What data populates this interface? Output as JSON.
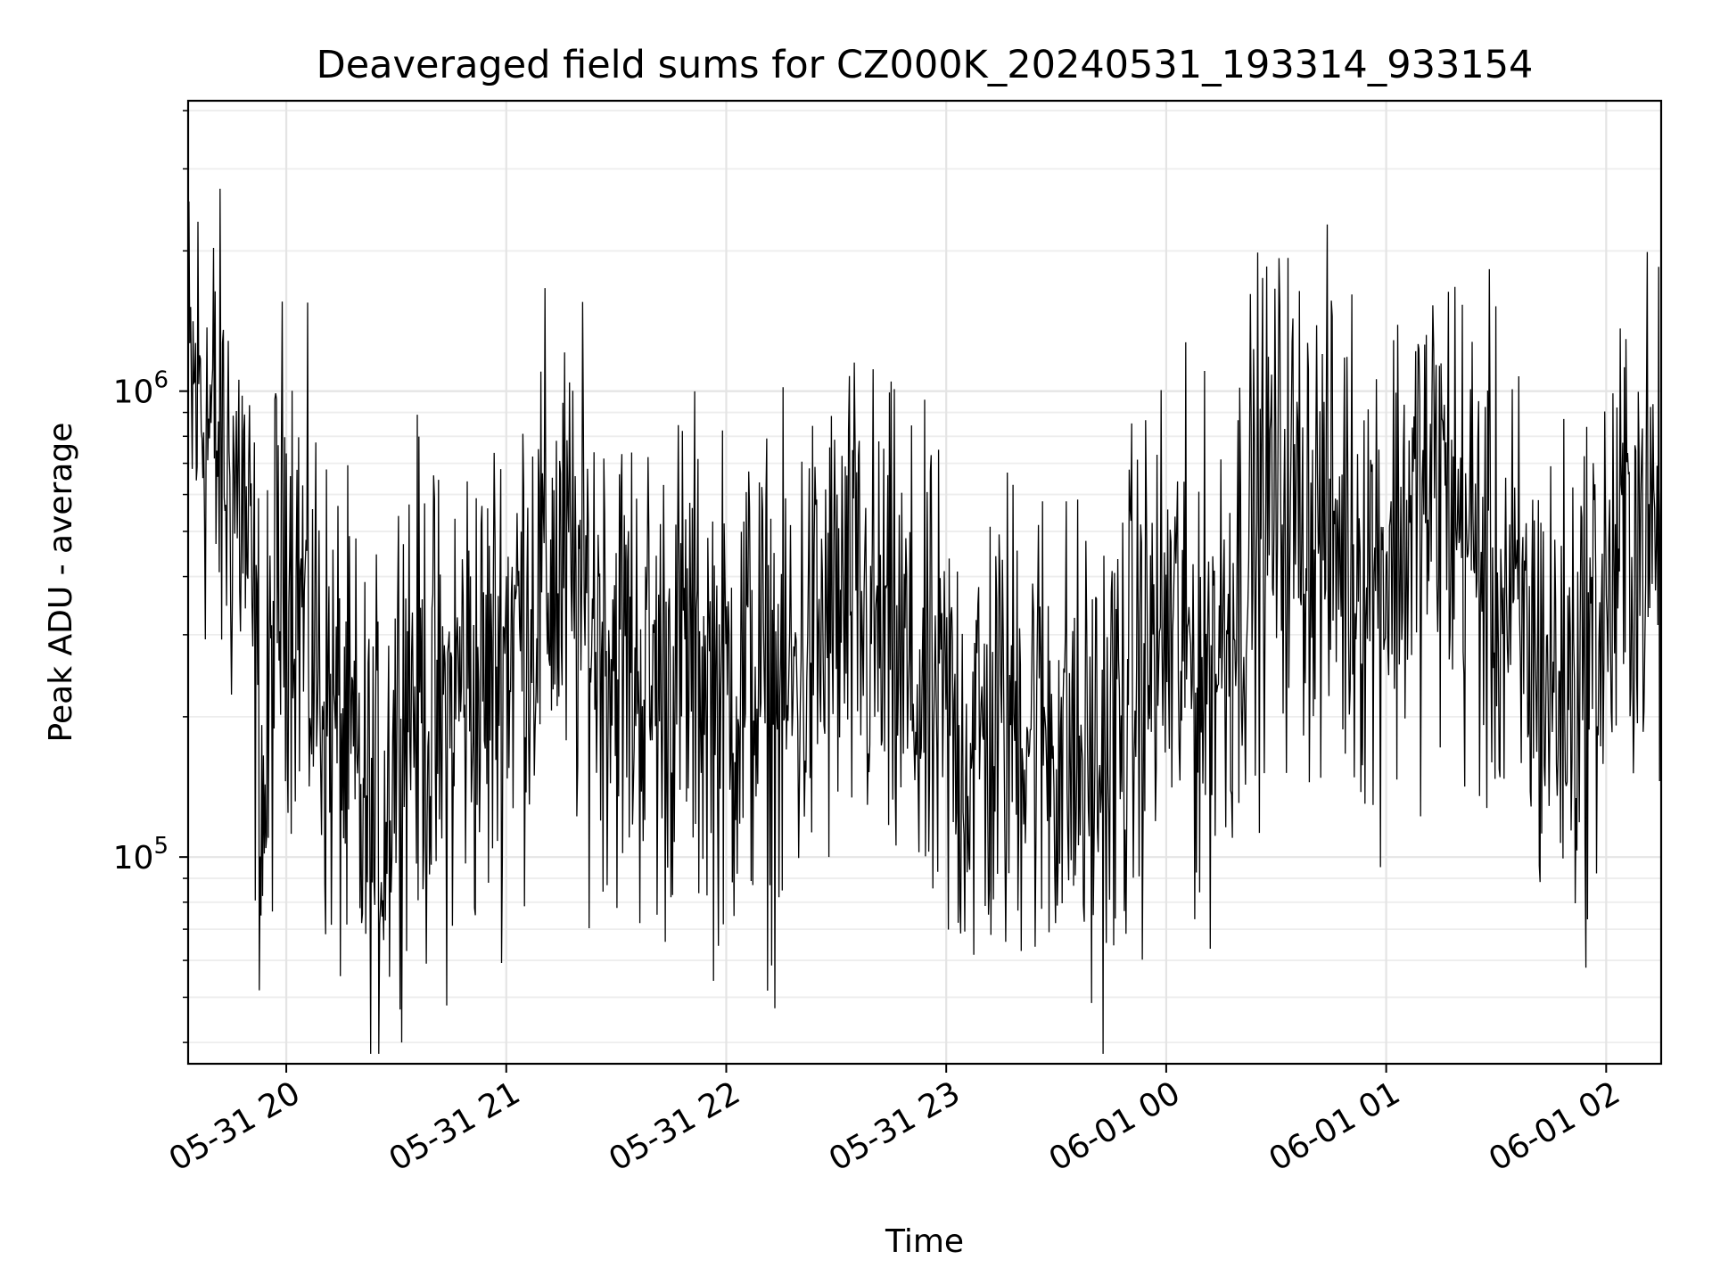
{
  "chart_data": {
    "type": "line",
    "title": "Deaveraged field sums for CZ000K_20240531_193314_933154",
    "xlabel": "Time",
    "ylabel": "Peak ADU - average",
    "yscale": "log",
    "ylim": [
      36000,
      4200000
    ],
    "xlim": [
      "2024-05-31 19:33:14",
      "2024-06-01 02:15:00"
    ],
    "grid": true,
    "x_ticks": [
      {
        "value": "2024-05-31 20:00",
        "label": "05-31 20"
      },
      {
        "value": "2024-05-31 21:00",
        "label": "05-31 21"
      },
      {
        "value": "2024-05-31 22:00",
        "label": "05-31 22"
      },
      {
        "value": "2024-05-31 23:00",
        "label": "05-31 23"
      },
      {
        "value": "2024-06-01 00:00",
        "label": "06-01 00"
      },
      {
        "value": "2024-06-01 01:00",
        "label": "06-01 01"
      },
      {
        "value": "2024-06-01 02:00",
        "label": "06-01 02"
      }
    ],
    "y_ticks": [
      {
        "value": 100000,
        "base": "10",
        "exp": "5"
      },
      {
        "value": 1000000,
        "base": "10",
        "exp": "6"
      }
    ],
    "series": [
      {
        "color": "#000000",
        "x": [
          "2024-05-31 19:33",
          "2024-05-31 19:36",
          "2024-05-31 19:39",
          "2024-05-31 19:42",
          "2024-05-31 19:45",
          "2024-05-31 19:48",
          "2024-05-31 19:51",
          "2024-05-31 19:54",
          "2024-05-31 19:57",
          "2024-05-31 20:00",
          "2024-05-31 20:03",
          "2024-05-31 20:06",
          "2024-05-31 20:09",
          "2024-05-31 20:12",
          "2024-05-31 20:15",
          "2024-05-31 20:18",
          "2024-05-31 20:21",
          "2024-05-31 20:24",
          "2024-05-31 20:27",
          "2024-05-31 20:30",
          "2024-05-31 20:33",
          "2024-05-31 20:36",
          "2024-05-31 20:39",
          "2024-05-31 20:42",
          "2024-05-31 20:45",
          "2024-05-31 20:48",
          "2024-05-31 20:51",
          "2024-05-31 20:54",
          "2024-05-31 20:57",
          "2024-05-31 21:00",
          "2024-05-31 21:03",
          "2024-05-31 21:06",
          "2024-05-31 21:09",
          "2024-05-31 21:12",
          "2024-05-31 21:15",
          "2024-05-31 21:18",
          "2024-05-31 21:21",
          "2024-05-31 21:24",
          "2024-05-31 21:27",
          "2024-05-31 21:30",
          "2024-05-31 21:33",
          "2024-05-31 21:36",
          "2024-05-31 21:39",
          "2024-05-31 21:42",
          "2024-05-31 21:45",
          "2024-05-31 21:48",
          "2024-05-31 21:51",
          "2024-05-31 21:54",
          "2024-05-31 21:57",
          "2024-05-31 22:00",
          "2024-05-31 22:03",
          "2024-05-31 22:06",
          "2024-05-31 22:09",
          "2024-05-31 22:12",
          "2024-05-31 22:15",
          "2024-05-31 22:18",
          "2024-05-31 22:21",
          "2024-05-31 22:24",
          "2024-05-31 22:27",
          "2024-05-31 22:30",
          "2024-05-31 22:33",
          "2024-05-31 22:36",
          "2024-05-31 22:39",
          "2024-05-31 22:42",
          "2024-05-31 22:45",
          "2024-05-31 22:48",
          "2024-05-31 22:51",
          "2024-05-31 22:54",
          "2024-05-31 22:57",
          "2024-05-31 23:00",
          "2024-05-31 23:03",
          "2024-05-31 23:06",
          "2024-05-31 23:09",
          "2024-05-31 23:12",
          "2024-05-31 23:15",
          "2024-05-31 23:18",
          "2024-05-31 23:21",
          "2024-05-31 23:24",
          "2024-05-31 23:27",
          "2024-05-31 23:30",
          "2024-05-31 23:33",
          "2024-05-31 23:36",
          "2024-05-31 23:39",
          "2024-05-31 23:42",
          "2024-05-31 23:45",
          "2024-05-31 23:48",
          "2024-05-31 23:51",
          "2024-05-31 23:54",
          "2024-05-31 23:57",
          "2024-06-01 00:00",
          "2024-06-01 00:03",
          "2024-06-01 00:06",
          "2024-06-01 00:09",
          "2024-06-01 00:12",
          "2024-06-01 00:15",
          "2024-06-01 00:18",
          "2024-06-01 00:21",
          "2024-06-01 00:24",
          "2024-06-01 00:27",
          "2024-06-01 00:30",
          "2024-06-01 00:33",
          "2024-06-01 00:36",
          "2024-06-01 00:39",
          "2024-06-01 00:42",
          "2024-06-01 00:45",
          "2024-06-01 00:48",
          "2024-06-01 00:51",
          "2024-06-01 00:54",
          "2024-06-01 00:57",
          "2024-06-01 01:00",
          "2024-06-01 01:03",
          "2024-06-01 01:06",
          "2024-06-01 01:09",
          "2024-06-01 01:12",
          "2024-06-01 01:15",
          "2024-06-01 01:18",
          "2024-06-01 01:21",
          "2024-06-01 01:24",
          "2024-06-01 01:27",
          "2024-06-01 01:30",
          "2024-06-01 01:33",
          "2024-06-01 01:36",
          "2024-06-01 01:39",
          "2024-06-01 01:42",
          "2024-06-01 01:45",
          "2024-06-01 01:48",
          "2024-06-01 01:51",
          "2024-06-01 01:54",
          "2024-06-01 01:57",
          "2024-06-01 02:00",
          "2024-06-01 02:03",
          "2024-06-01 02:06",
          "2024-06-01 02:09",
          "2024-06-01 02:12",
          "2024-06-01 02:15"
        ],
        "values": [
          900000,
          1000000,
          850000,
          700000,
          650000,
          600000,
          300000,
          120000,
          350000,
          500000,
          400000,
          300000,
          250000,
          200000,
          180000,
          150000,
          120000,
          110000,
          130000,
          200000,
          250000,
          220000,
          200000,
          180000,
          200000,
          250000,
          230000,
          220000,
          260000,
          300000,
          320000,
          350000,
          380000,
          420000,
          400000,
          380000,
          350000,
          330000,
          300000,
          280000,
          260000,
          250000,
          240000,
          230000,
          250000,
          270000,
          260000,
          250000,
          230000,
          220000,
          230000,
          250000,
          240000,
          220000,
          210000,
          230000,
          260000,
          280000,
          300000,
          320000,
          340000,
          330000,
          310000,
          290000,
          270000,
          250000,
          230000,
          210000,
          200000,
          190000,
          180000,
          170000,
          175000,
          180000,
          190000,
          200000,
          210000,
          200000,
          190000,
          180000,
          170000,
          160000,
          150000,
          155000,
          170000,
          200000,
          230000,
          260000,
          280000,
          300000,
          290000,
          270000,
          250000,
          260000,
          300000,
          350000,
          420000,
          500000,
          560000,
          600000,
          580000,
          560000,
          540000,
          520000,
          500000,
          480000,
          460000,
          440000,
          430000,
          450000,
          480000,
          520000,
          560000,
          600000,
          620000,
          580000,
          520000,
          460000,
          420000,
          380000,
          340000,
          300000,
          280000,
          260000,
          240000,
          230000,
          240000,
          260000,
          300000,
          350000,
          420000,
          480000,
          520000,
          500000,
          480000
        ]
      }
    ]
  }
}
